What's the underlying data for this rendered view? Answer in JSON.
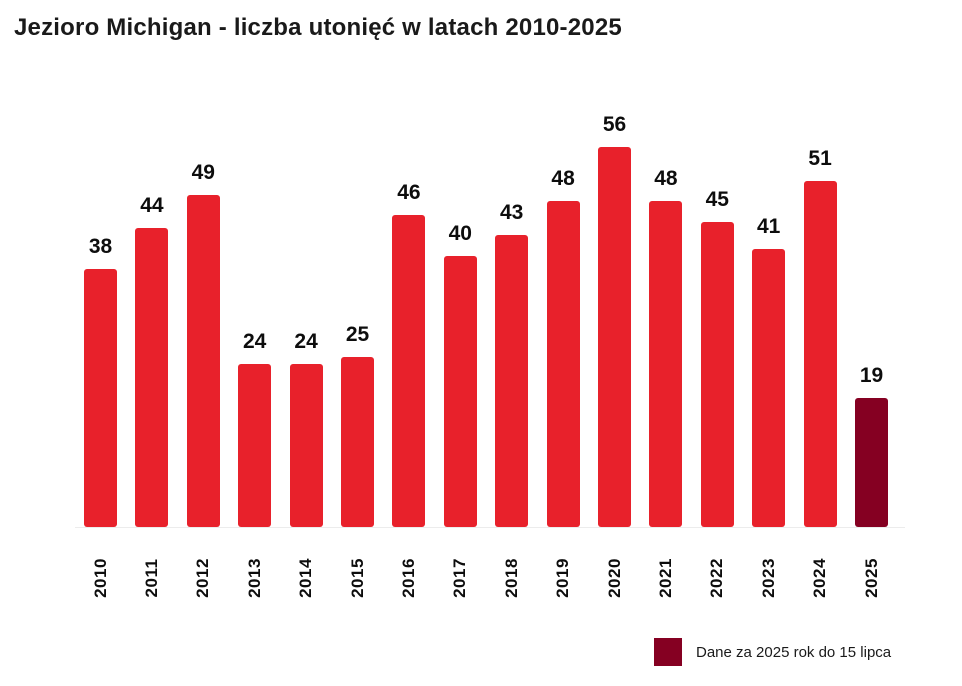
{
  "chart_data": {
    "type": "bar",
    "title": "Jezioro Michigan - liczba utonięć w latach 2010-2025",
    "categories": [
      "2010",
      "2011",
      "2012",
      "2013",
      "2014",
      "2015",
      "2016",
      "2017",
      "2018",
      "2019",
      "2020",
      "2021",
      "2022",
      "2023",
      "2024",
      "2025"
    ],
    "values": [
      38,
      44,
      49,
      24,
      24,
      25,
      46,
      40,
      43,
      48,
      56,
      48,
      45,
      41,
      51,
      19
    ],
    "bar_color": "#E8212B",
    "highlight_color": "#850022",
    "highlight_category": "2025",
    "value_labels_shown": true,
    "xlabel": "",
    "ylabel": "",
    "ylim": [
      0,
      60
    ],
    "grid": "off",
    "x_tick_rotation_degrees": 90,
    "legend": {
      "position": "bottom-right",
      "swatch_color": "#850022",
      "label": "Dane za 2025 rok do 15 lipca"
    }
  }
}
